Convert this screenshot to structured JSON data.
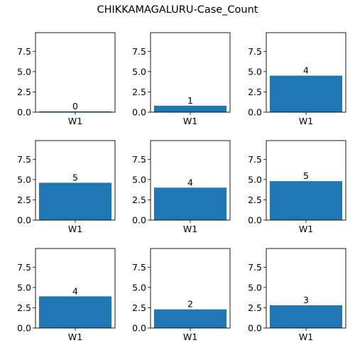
{
  "chart_data": {
    "type": "bar",
    "title": "CHIKKAMAGALURU-Case_Count",
    "layout": "3x3 grid of subplots",
    "ylim": [
      0,
      9.8
    ],
    "yticks": [
      0.0,
      2.5,
      5.0,
      7.5
    ],
    "ytick_labels": [
      "0.0",
      "2.5",
      "5.0",
      "7.5"
    ],
    "bar_color": "#1f77b4",
    "grid": false,
    "subplots": [
      {
        "categories": [
          "W1"
        ],
        "values": [
          0.1
        ],
        "data_label": "0"
      },
      {
        "categories": [
          "W1"
        ],
        "values": [
          0.8
        ],
        "data_label": "1"
      },
      {
        "categories": [
          "W1"
        ],
        "values": [
          4.5
        ],
        "data_label": "4"
      },
      {
        "categories": [
          "W1"
        ],
        "values": [
          4.6
        ],
        "data_label": "5"
      },
      {
        "categories": [
          "W1"
        ],
        "values": [
          4.0
        ],
        "data_label": "4"
      },
      {
        "categories": [
          "W1"
        ],
        "values": [
          4.8
        ],
        "data_label": "5"
      },
      {
        "categories": [
          "W1"
        ],
        "values": [
          3.9
        ],
        "data_label": "4"
      },
      {
        "categories": [
          "W1"
        ],
        "values": [
          2.3
        ],
        "data_label": "2"
      },
      {
        "categories": [
          "W1"
        ],
        "values": [
          2.8
        ],
        "data_label": "3"
      }
    ]
  }
}
